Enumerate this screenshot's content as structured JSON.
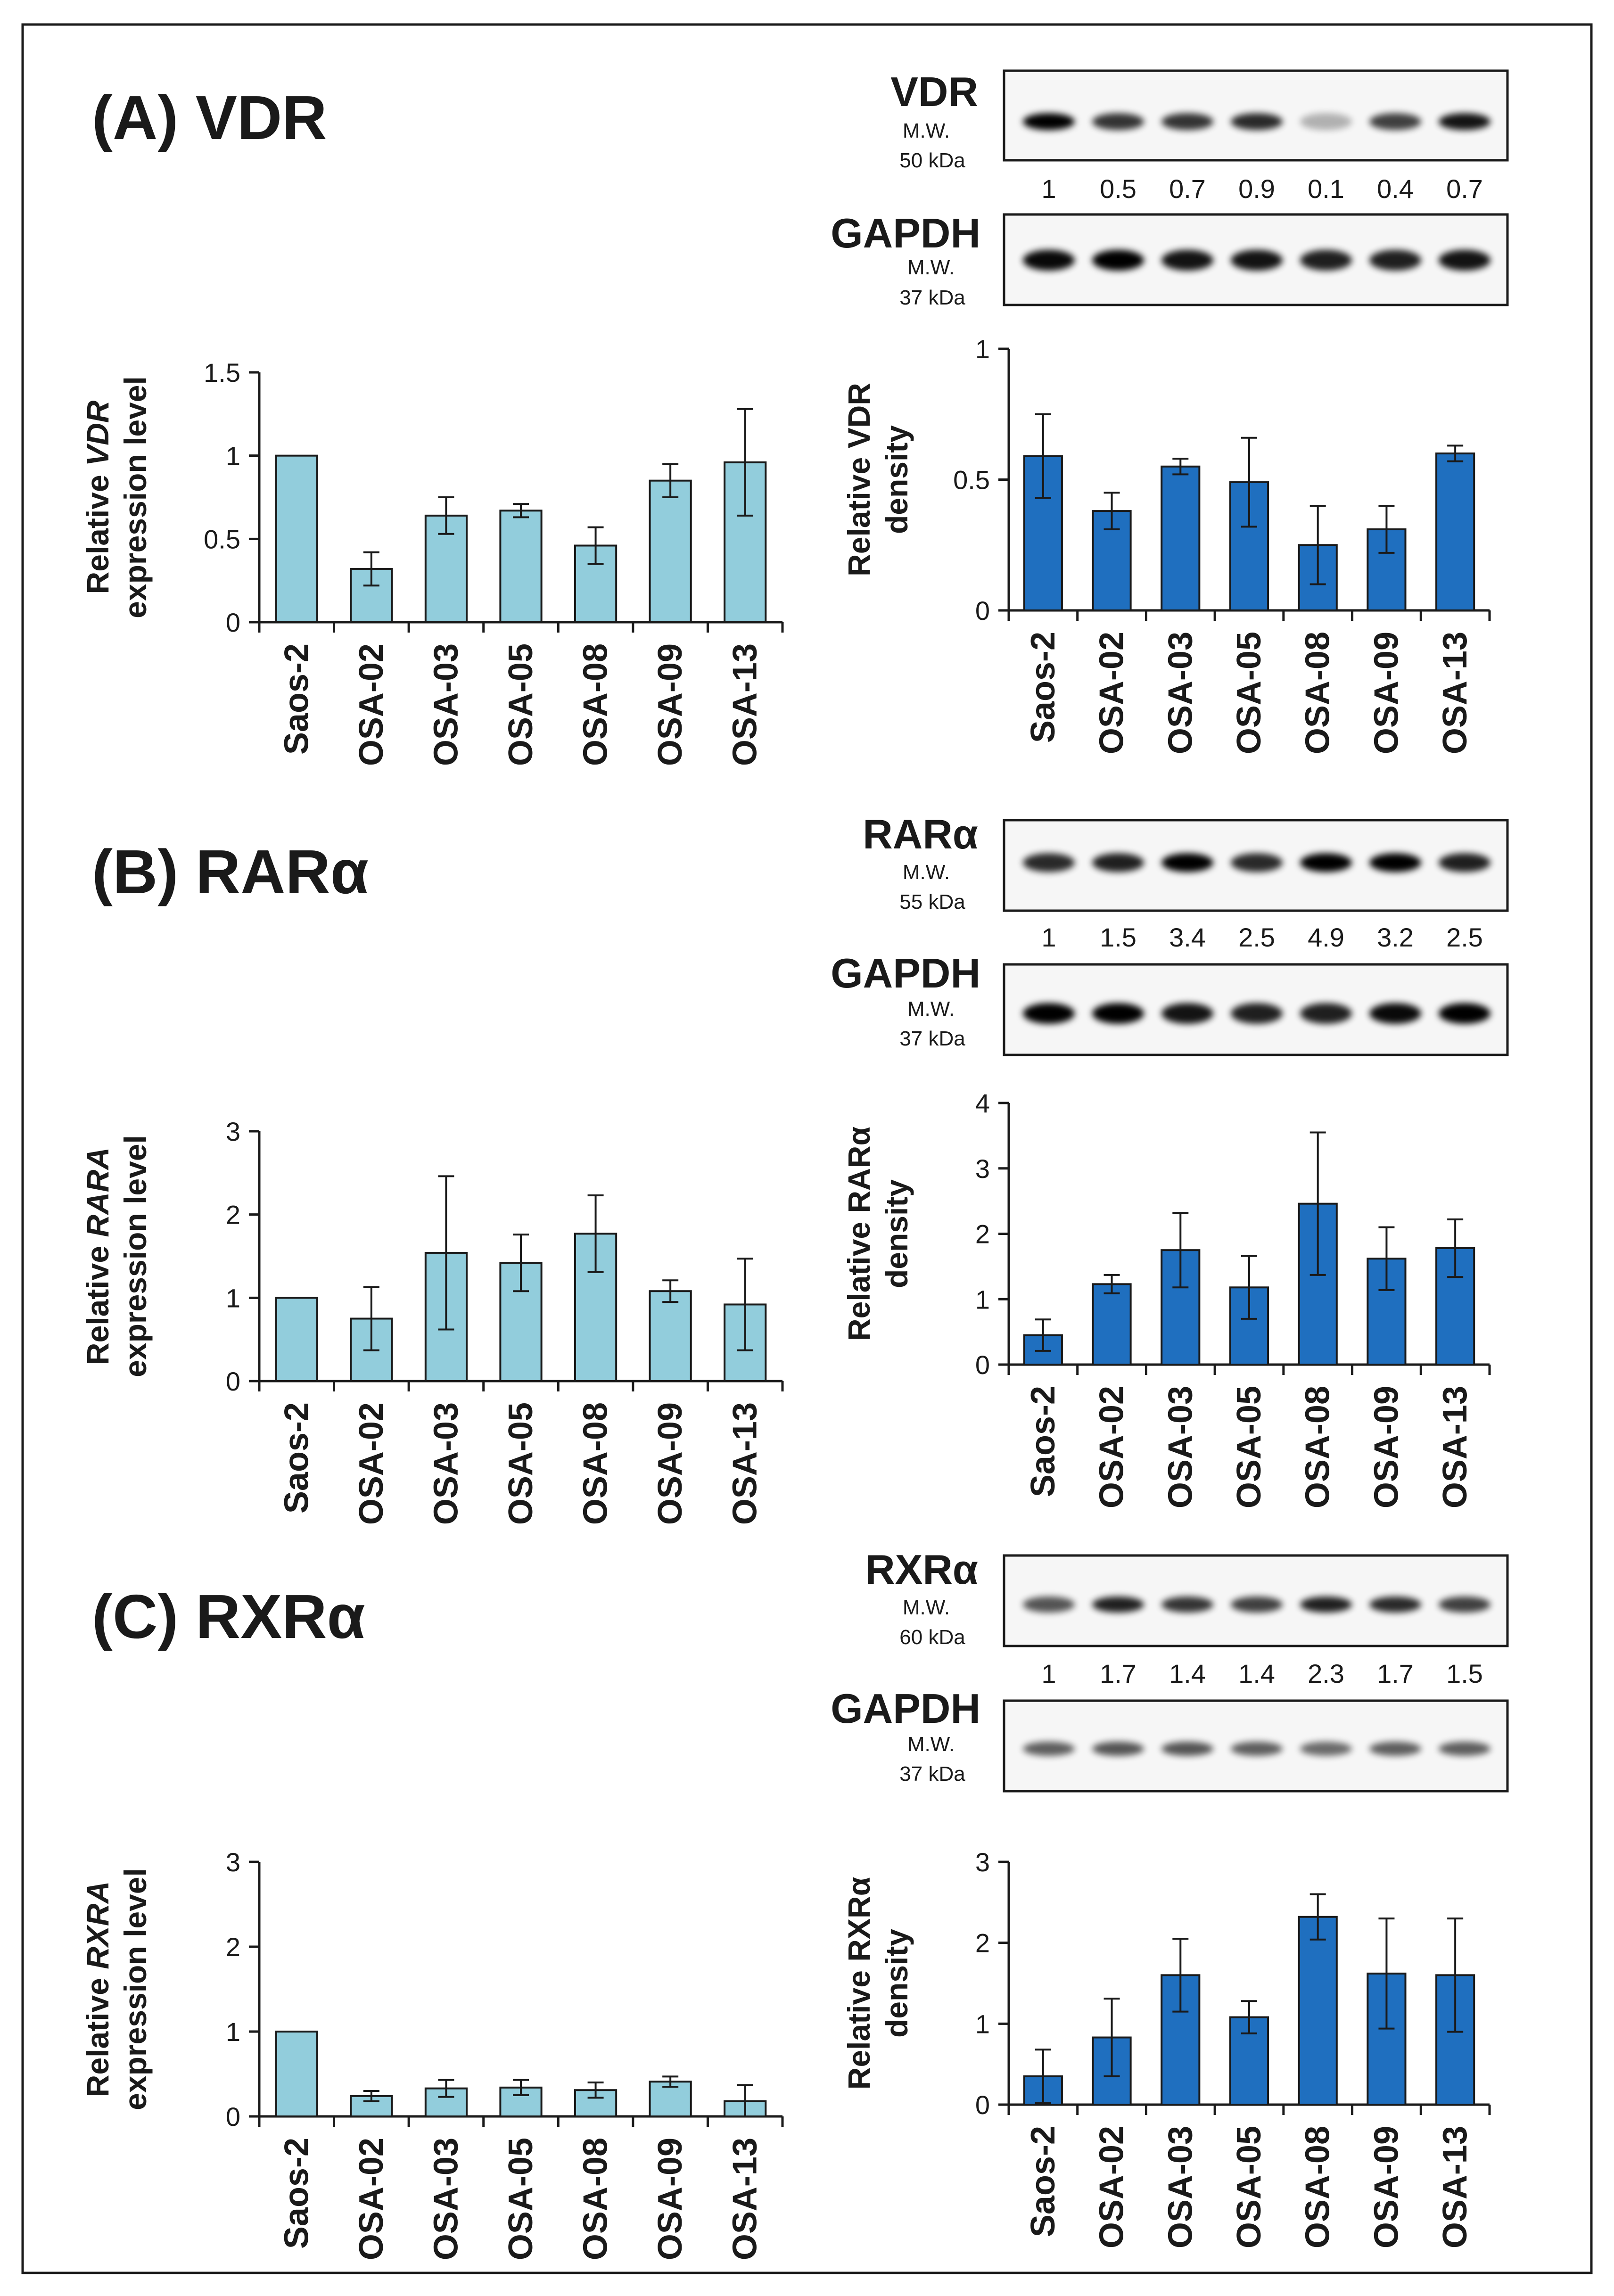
{
  "panels": [
    {
      "id": "A",
      "title": "(A) VDR",
      "blot": {
        "protein": "VDR",
        "mw_label": "M.W.",
        "mw_value": "50 kDa",
        "quant": [
          "1",
          "0.5",
          "0.7",
          "0.9",
          "0.1",
          "0.4",
          "0.7"
        ]
      },
      "gapdh": {
        "label": "GAPDH",
        "mw_label": "M.W.",
        "mw_value": "37 kDa"
      }
    },
    {
      "id": "B",
      "title": "(B) RARα",
      "blot": {
        "protein": "RARα",
        "mw_label": "M.W.",
        "mw_value": "55 kDa",
        "quant": [
          "1",
          "1.5",
          "3.4",
          "2.5",
          "4.9",
          "3.2",
          "2.5"
        ]
      },
      "gapdh": {
        "label": "GAPDH",
        "mw_label": "M.W.",
        "mw_value": "37 kDa"
      }
    },
    {
      "id": "C",
      "title": "(C) RXRα",
      "blot": {
        "protein": "RXRα",
        "mw_label": "M.W.",
        "mw_value": "60 kDa",
        "quant": [
          "1",
          "1.7",
          "1.4",
          "1.4",
          "2.3",
          "1.7",
          "1.5"
        ]
      },
      "gapdh": {
        "label": "GAPDH",
        "mw_label": "M.W.",
        "mw_value": "37 kDa"
      }
    }
  ],
  "colors": {
    "light_bar": "#92cddc",
    "dark_bar": "#1f6fbf",
    "axis": "#1a1a1a"
  },
  "chart_data": [
    {
      "type": "bar",
      "panel": "A",
      "ylabel": "Relative VDR expression level",
      "ylabel_italic_word": "VDR",
      "categories": [
        "Saos-2",
        "OSA-02",
        "OSA-03",
        "OSA-05",
        "OSA-08",
        "OSA-09",
        "OSA-13"
      ],
      "values": [
        1,
        0.32,
        0.64,
        0.67,
        0.46,
        0.85,
        0.96
      ],
      "errors": [
        0,
        0.1,
        0.11,
        0.04,
        0.11,
        0.1,
        0.32
      ],
      "yticks": [
        "0",
        "0.5",
        "1",
        "1.5"
      ],
      "ylim": [
        0,
        1.5
      ]
    },
    {
      "type": "bar",
      "panel": "A",
      "ylabel": "Relative VDR density",
      "categories": [
        "Saos-2",
        "OSA-02",
        "OSA-03",
        "OSA-05",
        "OSA-08",
        "OSA-09",
        "OSA-13"
      ],
      "values": [
        0.59,
        0.38,
        0.55,
        0.49,
        0.25,
        0.31,
        0.6
      ],
      "errors": [
        0.16,
        0.07,
        0.03,
        0.17,
        0.15,
        0.09,
        0.03
      ],
      "yticks": [
        "0",
        "0.5",
        "1"
      ],
      "ylim": [
        0,
        1
      ]
    },
    {
      "type": "bar",
      "panel": "B",
      "ylabel": "Relative RARA expression level",
      "ylabel_italic_word": "RARA",
      "categories": [
        "Saos-2",
        "OSA-02",
        "OSA-03",
        "OSA-05",
        "OSA-08",
        "OSA-09",
        "OSA-13"
      ],
      "values": [
        1,
        0.75,
        1.54,
        1.42,
        1.77,
        1.08,
        0.92
      ],
      "errors": [
        0,
        0.38,
        0.92,
        0.34,
        0.46,
        0.13,
        0.55
      ],
      "yticks": [
        "0",
        "1",
        "2",
        "3"
      ],
      "ylim": [
        0,
        3
      ]
    },
    {
      "type": "bar",
      "panel": "B",
      "ylabel": "Relative RARα density",
      "categories": [
        "Saos-2",
        "OSA-02",
        "OSA-03",
        "OSA-05",
        "OSA-08",
        "OSA-09",
        "OSA-13"
      ],
      "values": [
        0.45,
        1.23,
        1.75,
        1.18,
        2.46,
        1.62,
        1.78
      ],
      "errors": [
        0.24,
        0.14,
        0.57,
        0.48,
        1.09,
        0.48,
        0.44
      ],
      "yticks": [
        "0",
        "1",
        "2",
        "3",
        "4"
      ],
      "ylim": [
        0,
        4
      ]
    },
    {
      "type": "bar",
      "panel": "C",
      "ylabel": "Relative RXRA expression level",
      "ylabel_italic_word": "RXRA",
      "categories": [
        "Saos-2",
        "OSA-02",
        "OSA-03",
        "OSA-05",
        "OSA-08",
        "OSA-09",
        "OSA-13"
      ],
      "values": [
        1,
        0.24,
        0.33,
        0.34,
        0.31,
        0.41,
        0.18
      ],
      "errors": [
        0,
        0.06,
        0.1,
        0.09,
        0.09,
        0.06,
        0.19
      ],
      "yticks": [
        "0",
        "1",
        "2",
        "3"
      ],
      "ylim": [
        0,
        3
      ]
    },
    {
      "type": "bar",
      "panel": "C",
      "ylabel": "Relative RXRα density",
      "categories": [
        "Saos-2",
        "OSA-02",
        "OSA-03",
        "OSA-05",
        "OSA-08",
        "OSA-09",
        "OSA-13"
      ],
      "values": [
        0.35,
        0.83,
        1.6,
        1.08,
        2.32,
        1.62,
        1.6
      ],
      "errors": [
        0.33,
        0.48,
        0.45,
        0.2,
        0.28,
        0.68,
        0.7
      ],
      "yticks": [
        "0",
        "1",
        "2",
        "3"
      ],
      "ylim": [
        0,
        3
      ]
    }
  ]
}
